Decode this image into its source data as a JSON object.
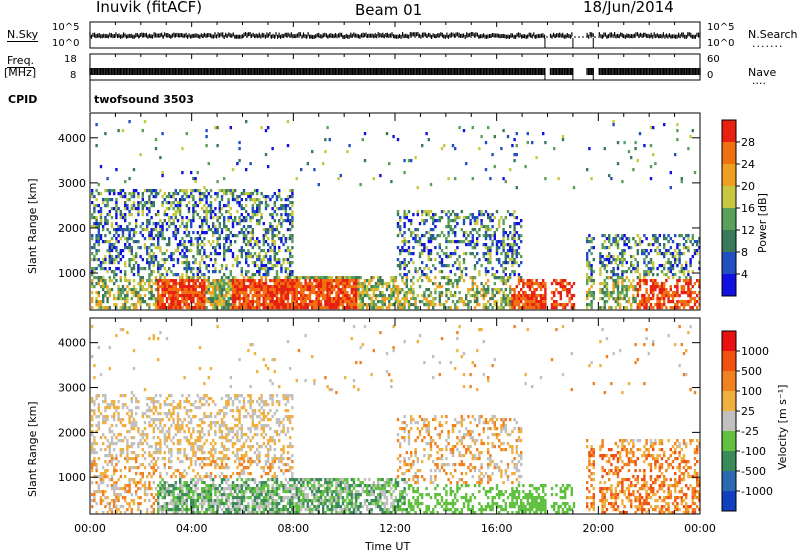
{
  "header": {
    "station": "Inuvik (fitACF)",
    "beam": "Beam 01",
    "date": "18/Jun/2014"
  },
  "strips": {
    "nsky_label": "N.Sky",
    "nsky_tick_high": "10^5",
    "nsky_tick_low": "10^0",
    "nsearch_label": "N.Search",
    "nsearch_tick_high": "10^5",
    "nsearch_tick_low": "10^0",
    "freq_label": "Freq.",
    "freq_unit": "[MHz]",
    "freq_tick_high": "18",
    "freq_tick_low": "8",
    "nave_label": "Nave",
    "nave_tick_high": "60",
    "nave_tick_low": "0",
    "cpid_label": "CPID",
    "cpid_value": "twofsound 3503"
  },
  "chart_data": [
    {
      "type": "heatmap",
      "panel": "power",
      "ylabel": "Slant Range [km]",
      "xlabel": "",
      "ylim": [
        180,
        4550
      ],
      "xlim": [
        0,
        24
      ],
      "yticks": [
        "4000",
        "3000",
        "2000",
        "1000"
      ],
      "colorbar": {
        "label": "Power [dB]",
        "ticks": [
          "28",
          "24",
          "20",
          "16",
          "12",
          "8",
          "4"
        ],
        "colors": [
          "#1010e0",
          "#2050c0",
          "#3a7a5a",
          "#5aa05a",
          "#c8c840",
          "#f0a020",
          "#f07010",
          "#e82010"
        ]
      }
    },
    {
      "type": "heatmap",
      "panel": "velocity",
      "ylabel": "Slant Range [km]",
      "xlabel": "Time UT",
      "ylim": [
        180,
        4550
      ],
      "xlim": [
        0,
        24
      ],
      "yticks": [
        "4000",
        "3000",
        "2000",
        "1000"
      ],
      "xticks": [
        "00:00",
        "04:00",
        "08:00",
        "12:00",
        "16:00",
        "20:00",
        "00:00"
      ],
      "colorbar": {
        "label": "Velocity [m s⁻¹]",
        "ticks": [
          "1000",
          "500",
          "100",
          "25",
          "-25",
          "-100",
          "-500",
          "-1000"
        ],
        "colors": [
          "#1040c0",
          "#2a6ab0",
          "#3a8a5a",
          "#60c040",
          "#c0c0c0",
          "#f0b040",
          "#f08020",
          "#f05010",
          "#e81010"
        ]
      }
    }
  ]
}
